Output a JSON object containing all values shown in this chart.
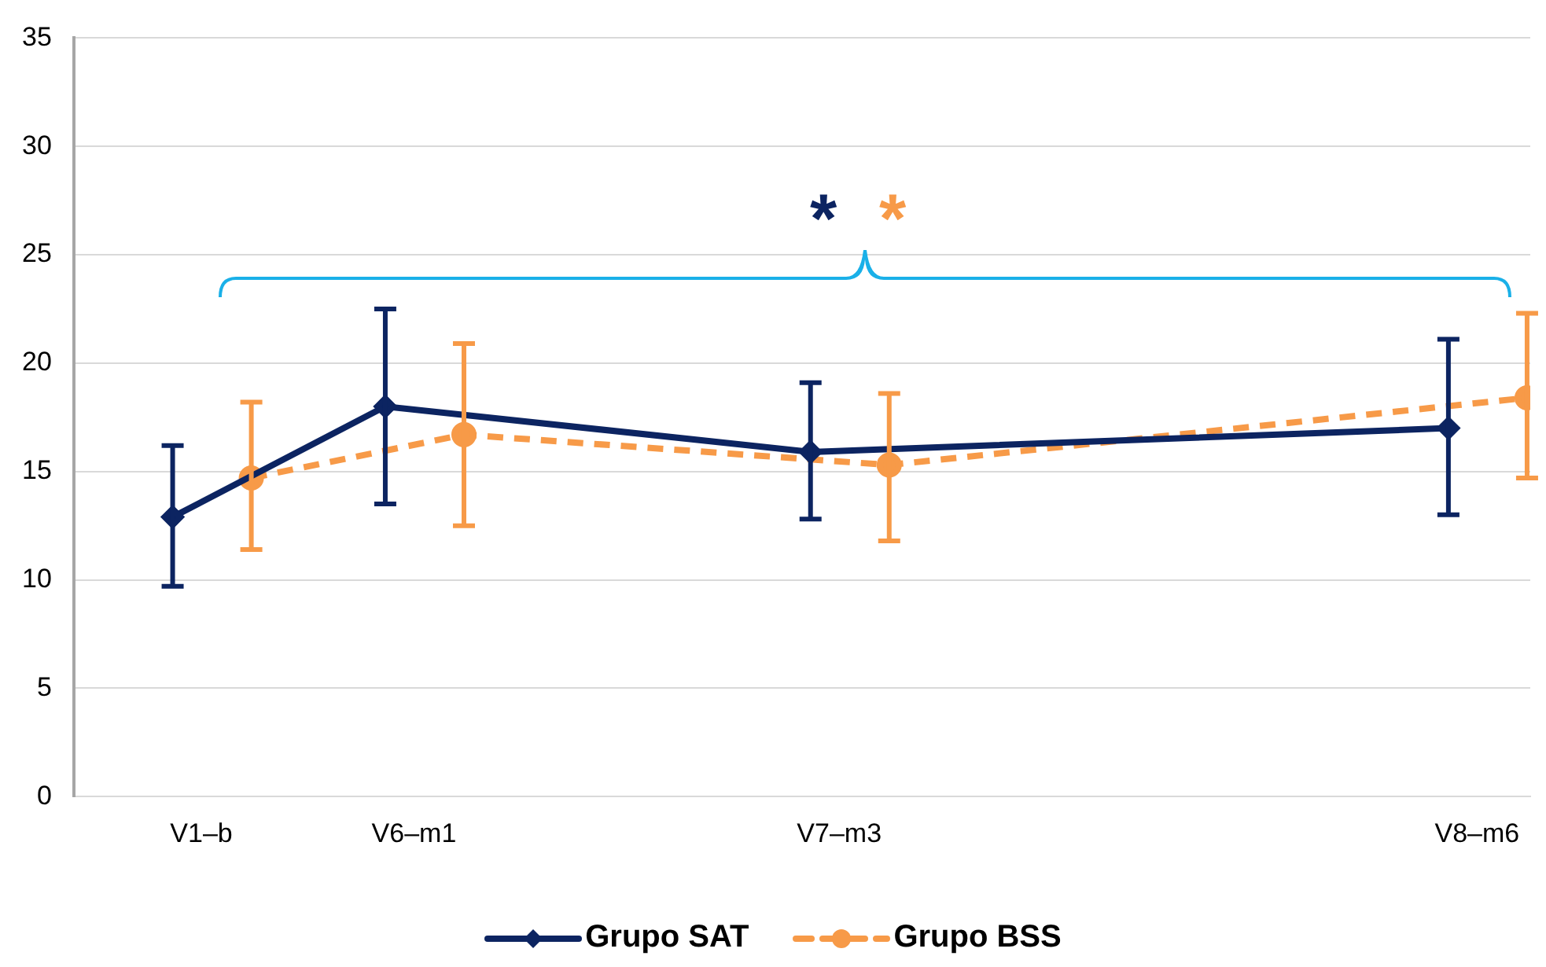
{
  "chart_data": {
    "type": "line",
    "categories": [
      "V1–b",
      "V6–m1",
      null,
      "V7–m3",
      null,
      null,
      "V8–m6"
    ],
    "ylim": [
      0,
      35
    ],
    "yticks": [
      0,
      5,
      10,
      15,
      20,
      25,
      30,
      35
    ],
    "grid": "y",
    "legend": "bottom",
    "annotations": [
      "*",
      "*"
    ],
    "series": [
      {
        "name": "Grupo SAT",
        "color": "#0c2461",
        "marker": "diamond",
        "line_style": "solid",
        "values": [
          12.9,
          18.0,
          null,
          15.9,
          null,
          null,
          17.0
        ],
        "errors": [
          [
            9.7,
            16.2
          ],
          [
            13.5,
            22.5
          ],
          null,
          [
            12.8,
            19.1
          ],
          null,
          null,
          [
            13.0,
            21.1
          ]
        ]
      },
      {
        "name": "Grupo BSS",
        "color": "#f79a48",
        "marker": "circle",
        "line_style": "dashed",
        "values": [
          14.7,
          16.7,
          null,
          15.3,
          null,
          null,
          18.4
        ],
        "errors": [
          [
            11.4,
            18.2
          ],
          [
            12.5,
            20.9
          ],
          null,
          [
            11.8,
            18.6
          ],
          null,
          null,
          [
            14.7,
            22.3
          ]
        ]
      }
    ]
  }
}
